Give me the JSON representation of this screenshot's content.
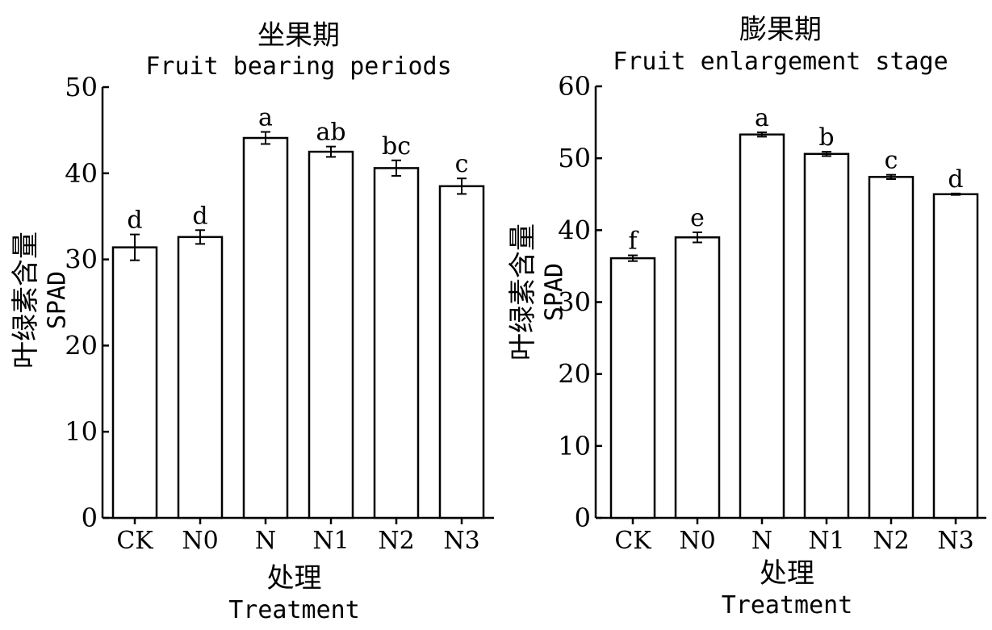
{
  "chart_data": [
    {
      "type": "bar",
      "title": "坐果期",
      "subtitle": "Fruit bearing periods",
      "xlabel": "处理",
      "xlabel_en": "Treatment",
      "ylabel": "叶绿素含量",
      "ylabel_en": "SPAD",
      "ylim": [
        0,
        50
      ],
      "yticks": [
        0,
        10,
        20,
        30,
        40,
        50
      ],
      "categories": [
        "CK",
        "N0",
        "N",
        "N1",
        "N2",
        "N3"
      ],
      "values": [
        31.4,
        32.6,
        44.1,
        42.5,
        40.6,
        38.5
      ],
      "errors": [
        1.5,
        0.8,
        0.7,
        0.6,
        0.9,
        0.9
      ],
      "sig_letters": [
        "d",
        "d",
        "a",
        "ab",
        "bc",
        "c"
      ]
    },
    {
      "type": "bar",
      "title": "膨果期",
      "subtitle": "Fruit enlargement stage",
      "xlabel": "处理",
      "xlabel_en": "Treatment",
      "ylabel": "叶绿素含量",
      "ylabel_en": "SPAD",
      "ylim": [
        0,
        60
      ],
      "yticks": [
        0,
        10,
        20,
        30,
        40,
        50,
        60
      ],
      "categories": [
        "CK",
        "N0",
        "N",
        "N1",
        "N2",
        "N3"
      ],
      "values": [
        36.1,
        39.0,
        53.3,
        50.6,
        47.4,
        45.0
      ],
      "errors": [
        0.4,
        0.7,
        0.3,
        0.3,
        0.3,
        0.1
      ],
      "sig_letters": [
        "f",
        "e",
        "a",
        "b",
        "c",
        "d"
      ]
    }
  ]
}
